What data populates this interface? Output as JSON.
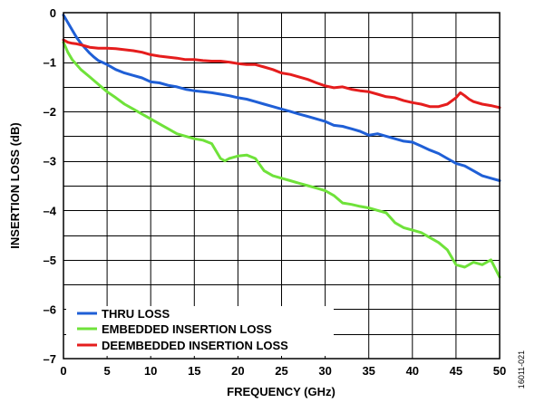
{
  "figure_id": "16011-021",
  "chart_data": {
    "type": "line",
    "title": "",
    "xlabel": "FREQUENCY (GHz)",
    "ylabel": "INSERTION LOSS (dB)",
    "xlim": [
      0,
      50
    ],
    "ylim": [
      -7,
      0
    ],
    "x_ticks": [
      0,
      5,
      10,
      15,
      20,
      25,
      30,
      35,
      40,
      45,
      50
    ],
    "y_ticks": [
      0,
      -1,
      -2,
      -3,
      -4,
      -5,
      -6,
      -7
    ],
    "x_tick_labels": [
      "0",
      "5",
      "10",
      "15",
      "20",
      "25",
      "30",
      "35",
      "40",
      "45",
      "50"
    ],
    "y_tick_labels": [
      "0",
      "–1",
      "–2",
      "–3",
      "–4",
      "–5",
      "–6",
      "–7"
    ],
    "y_minor_step": 0.5,
    "grid": true,
    "legend_position": "bottom-left",
    "series": [
      {
        "name": "THRU LOSS",
        "color": "#1f5fd6",
        "x": [
          0,
          0.5,
          1,
          1.5,
          2,
          2.5,
          3,
          3.5,
          4,
          5,
          6,
          7,
          8,
          9,
          10,
          11,
          12,
          13,
          14,
          15,
          16,
          17,
          18,
          19,
          20,
          21,
          22,
          23,
          24,
          25,
          26,
          27,
          28,
          29,
          30,
          31,
          32,
          33,
          34,
          35,
          36,
          37,
          38,
          39,
          40,
          41,
          42,
          43,
          44,
          45,
          46,
          47,
          48,
          49,
          50
        ],
        "y": [
          -0.05,
          -0.2,
          -0.35,
          -0.5,
          -0.62,
          -0.72,
          -0.82,
          -0.9,
          -0.97,
          -1.05,
          -1.15,
          -1.22,
          -1.27,
          -1.32,
          -1.4,
          -1.42,
          -1.47,
          -1.5,
          -1.55,
          -1.58,
          -1.6,
          -1.62,
          -1.65,
          -1.68,
          -1.72,
          -1.75,
          -1.8,
          -1.85,
          -1.9,
          -1.95,
          -2.0,
          -2.05,
          -2.1,
          -2.15,
          -2.2,
          -2.28,
          -2.3,
          -2.35,
          -2.4,
          -2.48,
          -2.45,
          -2.5,
          -2.55,
          -2.6,
          -2.62,
          -2.7,
          -2.78,
          -2.85,
          -2.95,
          -3.05,
          -3.1,
          -3.2,
          -3.3,
          -3.35,
          -3.4
        ]
      },
      {
        "name": "EMBEDDED INSERTION LOSS",
        "color": "#6fe23a",
        "x": [
          0,
          0.5,
          1,
          1.5,
          2,
          3,
          4,
          5,
          6,
          7,
          8,
          9,
          10,
          11,
          12,
          13,
          14,
          15,
          16,
          17,
          17.5,
          18,
          18.5,
          19,
          20,
          21,
          22,
          23,
          24,
          25,
          26,
          27,
          28,
          29,
          30,
          31,
          32,
          33,
          34,
          35,
          36,
          37,
          38,
          39,
          40,
          41,
          42,
          43,
          44,
          45,
          46,
          47,
          48,
          49,
          50
        ],
        "y": [
          -0.6,
          -0.8,
          -0.95,
          -1.05,
          -1.15,
          -1.3,
          -1.45,
          -1.6,
          -1.72,
          -1.85,
          -1.95,
          -2.05,
          -2.15,
          -2.25,
          -2.35,
          -2.45,
          -2.5,
          -2.55,
          -2.58,
          -2.65,
          -2.8,
          -2.95,
          -3.0,
          -2.95,
          -2.9,
          -2.88,
          -2.95,
          -3.2,
          -3.3,
          -3.35,
          -3.4,
          -3.45,
          -3.5,
          -3.55,
          -3.6,
          -3.7,
          -3.85,
          -3.88,
          -3.92,
          -3.95,
          -4.0,
          -4.05,
          -4.25,
          -4.35,
          -4.4,
          -4.45,
          -4.55,
          -4.65,
          -4.8,
          -5.1,
          -5.15,
          -5.05,
          -5.1,
          -5.0,
          -5.35
        ]
      },
      {
        "name": "DEEMBEDDED INSERTION LOSS",
        "color": "#e51d1d",
        "x": [
          0,
          0.5,
          1,
          1.5,
          2,
          3,
          4,
          5,
          6,
          7,
          8,
          9,
          10,
          11,
          12,
          13,
          14,
          15,
          16,
          17,
          18,
          19,
          20,
          21,
          22,
          23,
          24,
          25,
          26,
          27,
          28,
          29,
          30,
          31,
          32,
          33,
          34,
          35,
          36,
          37,
          38,
          39,
          40,
          41,
          42,
          43,
          44,
          45,
          45.5,
          46,
          46.5,
          47,
          48,
          49,
          50
        ],
        "y": [
          -0.55,
          -0.6,
          -0.62,
          -0.63,
          -0.65,
          -0.7,
          -0.72,
          -0.72,
          -0.73,
          -0.75,
          -0.77,
          -0.8,
          -0.85,
          -0.88,
          -0.9,
          -0.92,
          -0.95,
          -0.95,
          -0.97,
          -0.98,
          -0.98,
          -1.0,
          -1.03,
          -1.05,
          -1.05,
          -1.1,
          -1.15,
          -1.22,
          -1.25,
          -1.3,
          -1.35,
          -1.42,
          -1.48,
          -1.52,
          -1.5,
          -1.55,
          -1.58,
          -1.6,
          -1.65,
          -1.7,
          -1.72,
          -1.78,
          -1.82,
          -1.85,
          -1.9,
          -1.9,
          -1.85,
          -1.72,
          -1.62,
          -1.68,
          -1.75,
          -1.8,
          -1.85,
          -1.88,
          -1.92
        ]
      }
    ]
  }
}
